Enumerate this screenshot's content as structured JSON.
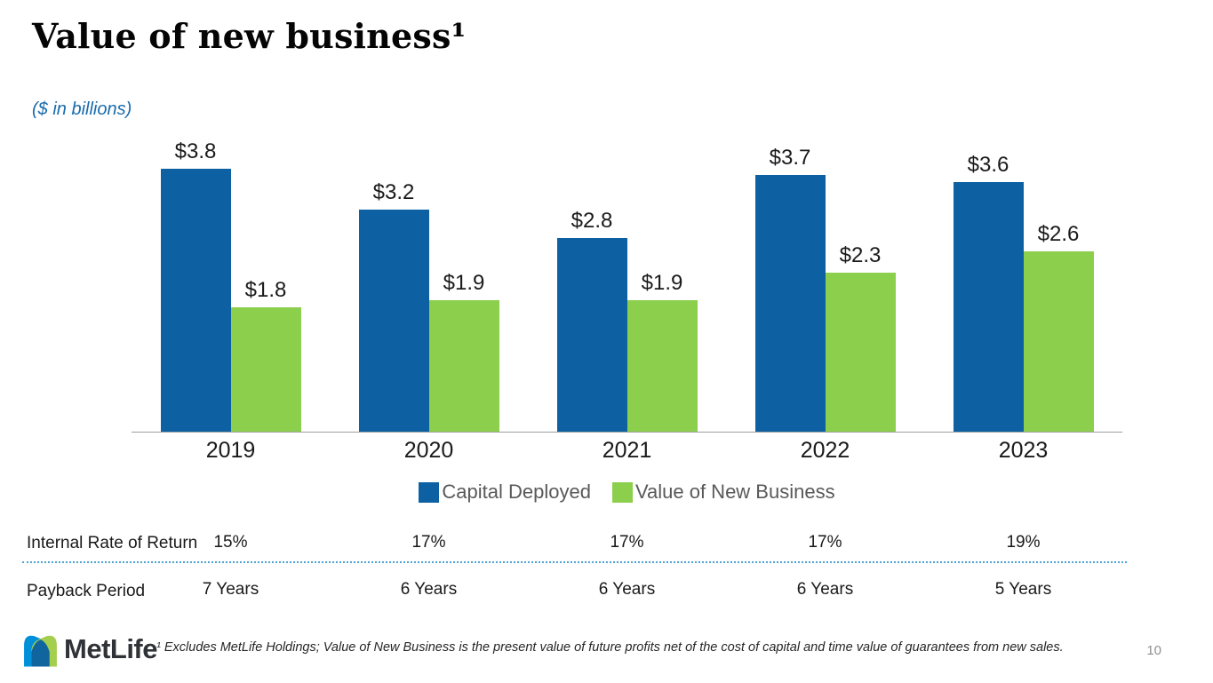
{
  "slide": {
    "title": "Value of new business¹",
    "subtitle": "($ in billions)",
    "footnote": "¹ Excludes MetLife Holdings; Value of New Business is the present value of future profits net of the cost of capital and time value of guarantees from new sales.",
    "page_number": "10",
    "logo_text": "MetLife"
  },
  "chart_data": {
    "type": "bar",
    "title": "Value of new business",
    "units": "$ in billions",
    "categories": [
      "2019",
      "2020",
      "2021",
      "2022",
      "2023"
    ],
    "series": [
      {
        "name": "Capital Deployed",
        "color": "#0D61A3",
        "values": [
          3.8,
          3.2,
          2.8,
          3.7,
          3.6
        ]
      },
      {
        "name": "Value of New Business",
        "color": "#8CCF4D",
        "values": [
          1.8,
          1.9,
          1.9,
          2.3,
          2.6
        ]
      }
    ],
    "value_prefix": "$",
    "value_decimals": 1,
    "ylim": [
      0,
      4.3
    ],
    "grid": false,
    "legend_position": "bottom",
    "data_labels": [
      "$3.8",
      "$3.2",
      "$2.8",
      "$3.7",
      "$3.6",
      "$1.8",
      "$1.9",
      "$1.9",
      "$2.3",
      "$2.6"
    ]
  },
  "stats_table": {
    "rows": [
      {
        "label": "Internal Rate of Return",
        "values": [
          "15%",
          "17%",
          "17%",
          "17%",
          "19%"
        ]
      },
      {
        "label": "Payback Period",
        "values": [
          "7 Years",
          "6 Years",
          "6 Years",
          "6 Years",
          "5 Years"
        ]
      }
    ]
  },
  "colors": {
    "capital_deployed_blue": "#0D61A3",
    "value_of_new_business_green": "#8CCF4D",
    "subtitle_blue": "#1A6CAD",
    "legend_text_gray": "#595959",
    "divider_dotted_blue": "#4DA2D6",
    "axis_gray": "#9E9E9E",
    "logo_blue": "#0090DA",
    "logo_green": "#A4CE4E",
    "logo_overlap_blue": "#11659E"
  }
}
